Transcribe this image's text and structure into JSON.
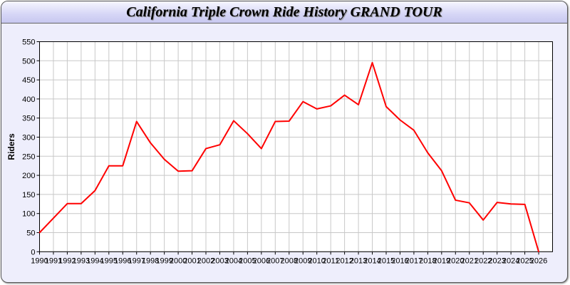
{
  "chart_data": {
    "type": "line",
    "title": "California Triple Crown Ride History GRAND TOUR",
    "xlabel": "",
    "ylabel": "Riders",
    "xlim": [
      1990,
      2027
    ],
    "ylim": [
      0,
      550
    ],
    "grid": true,
    "line_color": "#ff0000",
    "x_ticks": [
      1990,
      1991,
      1992,
      1993,
      1994,
      1995,
      1996,
      1997,
      1998,
      1999,
      2000,
      2001,
      2002,
      2003,
      2004,
      2005,
      2006,
      2007,
      2008,
      2009,
      2010,
      2011,
      2012,
      2013,
      2014,
      2015,
      2016,
      2017,
      2018,
      2019,
      2020,
      2021,
      2022,
      2023,
      2024,
      2025,
      2026
    ],
    "y_ticks": [
      0,
      50,
      100,
      150,
      200,
      250,
      300,
      350,
      400,
      450,
      500,
      550
    ],
    "series": [
      {
        "x": [
          1990,
          1991,
          1992,
          1993,
          1994,
          1995,
          1996,
          1997,
          1998,
          1999,
          2000,
          2001,
          2002,
          2003,
          2004,
          2005,
          2006,
          2007,
          2008,
          2009,
          2010,
          2011,
          2012,
          2013,
          2014,
          2015,
          2016,
          2017,
          2018,
          2019,
          2020,
          2021,
          2022,
          2023,
          2024,
          2025,
          2026
        ],
        "values": [
          50,
          88,
          126,
          126,
          160,
          225,
          225,
          341,
          285,
          242,
          211,
          212,
          270,
          280,
          343,
          309,
          270,
          341,
          342,
          393,
          374,
          382,
          410,
          385,
          495,
          380,
          345,
          318,
          259,
          212,
          135,
          128,
          83,
          129,
          125,
          124,
          0
        ]
      }
    ]
  }
}
